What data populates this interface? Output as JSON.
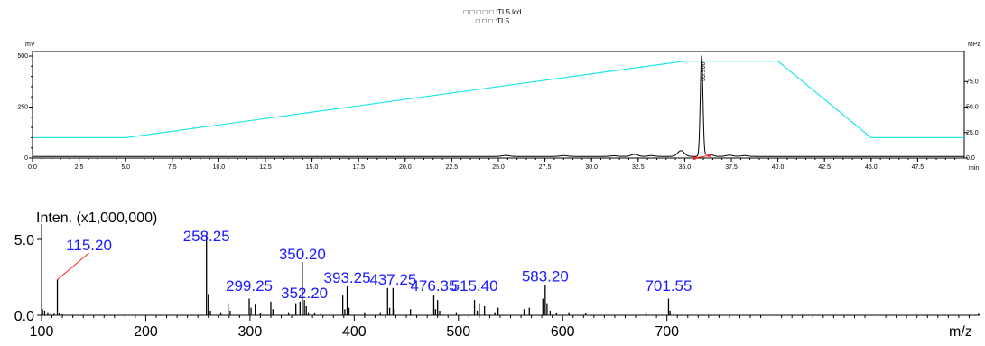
{
  "header": {
    "line1": "□ □ □ □ □ :TL5.lcd",
    "line2": "□ □ □ :TL5"
  },
  "chart_data": [
    {
      "type": "line",
      "name": "chromatogram",
      "ylabel_left": "mV",
      "ylabel_right": "MPa",
      "xunit": "min",
      "xlim": [
        0,
        50
      ],
      "ylim": [
        0,
        500
      ],
      "ylim_right": [
        0,
        100
      ],
      "x_ticks": [
        "0.0",
        "2.5",
        "5.0",
        "7.5",
        "10.0",
        "12.5",
        "15.0",
        "17.5",
        "20.0",
        "22.5",
        "25.0",
        "27.5",
        "30.0",
        "32.5",
        "35.0",
        "37.5",
        "40.0",
        "42.5",
        "45.0",
        "47.5"
      ],
      "y_ticks": [
        "0",
        "250",
        "500"
      ],
      "y_ticks_right": [
        "0.0",
        "25.0",
        "50.0",
        "75.0"
      ],
      "peak_label": "35.906",
      "signal": {
        "baseline": 8,
        "peaks": [
          {
            "rt": 25.4,
            "height": 5
          },
          {
            "rt": 28.5,
            "height": 4
          },
          {
            "rt": 31.2,
            "height": 3
          },
          {
            "rt": 32.3,
            "height": 10
          },
          {
            "rt": 33.2,
            "height": 4
          },
          {
            "rt": 34.8,
            "height": 28
          },
          {
            "rt": 35.906,
            "height": 495
          },
          {
            "rt": 36.3,
            "height": 12
          },
          {
            "rt": 37.4,
            "height": 6
          },
          {
            "rt": 38.2,
            "height": 4
          }
        ]
      },
      "pressure": {
        "x": [
          0,
          5,
          35,
          40,
          45,
          50
        ],
        "y": [
          20,
          20,
          95,
          95,
          20,
          20
        ]
      }
    },
    {
      "type": "bar",
      "name": "mass-spectrum",
      "ylabel": "Inten. (x1,000,000)",
      "xlabel": "m/z",
      "xlim": [
        100,
        1000
      ],
      "ylim": [
        0,
        5.0
      ],
      "x_ticks": [
        "100",
        "200",
        "300",
        "400",
        "500",
        "600",
        "700"
      ],
      "y_ticks": [
        "0.0",
        "5.0"
      ],
      "labels": [
        {
          "mz": 115.2,
          "text": "115.20"
        },
        {
          "mz": 258.25,
          "text": "258.25"
        },
        {
          "mz": 299.25,
          "text": "299.25"
        },
        {
          "mz": 350.2,
          "text": "350.20"
        },
        {
          "mz": 352.2,
          "text": "352.20"
        },
        {
          "mz": 393.25,
          "text": "393.25"
        },
        {
          "mz": 437.25,
          "text": "437.25"
        },
        {
          "mz": 476.35,
          "text": "476.35"
        },
        {
          "mz": 515.4,
          "text": "515.40"
        },
        {
          "mz": 583.2,
          "text": "583.20"
        },
        {
          "mz": 701.55,
          "text": "701.55"
        }
      ],
      "peaks": [
        [
          101,
          0.4
        ],
        [
          103,
          0.3
        ],
        [
          106,
          0.2
        ],
        [
          109,
          0.15
        ],
        [
          112,
          0.1
        ],
        [
          115.2,
          2.35
        ],
        [
          117,
          0.15
        ],
        [
          120,
          0.05
        ],
        [
          258.25,
          5.3
        ],
        [
          260,
          1.4
        ],
        [
          262,
          0.3
        ],
        [
          272,
          0.2
        ],
        [
          279,
          0.8
        ],
        [
          281,
          0.3
        ],
        [
          299.25,
          1.1
        ],
        [
          301,
          0.5
        ],
        [
          305,
          0.7
        ],
        [
          310,
          0.15
        ],
        [
          320,
          0.9
        ],
        [
          322,
          0.4
        ],
        [
          337,
          0.2
        ],
        [
          344,
          0.8
        ],
        [
          348,
          0.9
        ],
        [
          350.2,
          3.5
        ],
        [
          352.2,
          1.0
        ],
        [
          354,
          0.6
        ],
        [
          356,
          0.2
        ],
        [
          362,
          0.15
        ],
        [
          368,
          0.1
        ],
        [
          389,
          1.3
        ],
        [
          391,
          0.4
        ],
        [
          393.25,
          1.9
        ],
        [
          395,
          0.5
        ],
        [
          410,
          0.2
        ],
        [
          425,
          0.2
        ],
        [
          432,
          1.8
        ],
        [
          434,
          0.5
        ],
        [
          437.25,
          1.8
        ],
        [
          439,
          0.4
        ],
        [
          454,
          0.4
        ],
        [
          476.35,
          1.3
        ],
        [
          478,
          0.4
        ],
        [
          480,
          1.0
        ],
        [
          482,
          0.3
        ],
        [
          498,
          0.2
        ],
        [
          515.4,
          1.0
        ],
        [
          518,
          0.3
        ],
        [
          520,
          0.8
        ],
        [
          525,
          0.6
        ],
        [
          535,
          0.2
        ],
        [
          538,
          0.5
        ],
        [
          563,
          0.4
        ],
        [
          568,
          0.5
        ],
        [
          581,
          1.1
        ],
        [
          583.2,
          2.0
        ],
        [
          585,
          0.8
        ],
        [
          588,
          0.3
        ],
        [
          594,
          0.15
        ],
        [
          606,
          0.2
        ],
        [
          622,
          0.15
        ],
        [
          680,
          0.2
        ],
        [
          701.55,
          1.1
        ],
        [
          703,
          0.3
        ],
        [
          999,
          0.1
        ]
      ]
    }
  ]
}
